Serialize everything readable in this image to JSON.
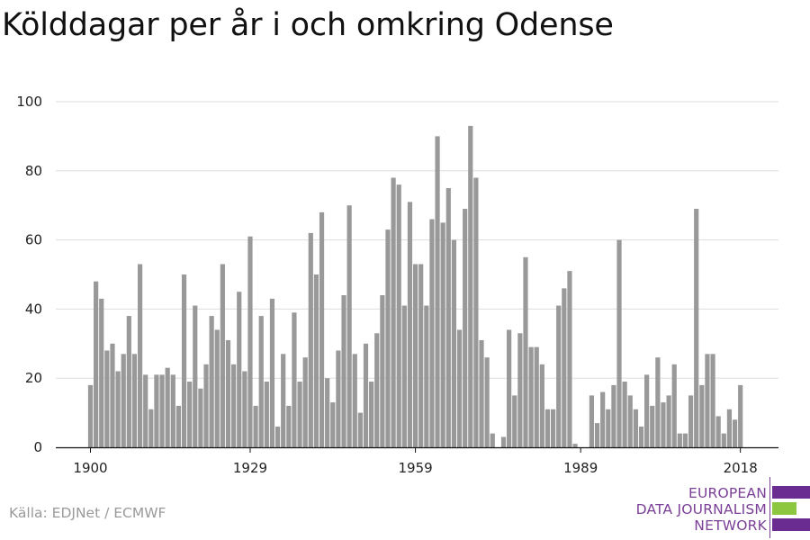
{
  "chart_data": {
    "type": "bar",
    "title": "Kölddagar per år i och omkring Odense",
    "xlabel": "",
    "ylabel": "",
    "x": [
      1900,
      1901,
      1902,
      1903,
      1904,
      1905,
      1906,
      1907,
      1908,
      1909,
      1910,
      1911,
      1912,
      1913,
      1914,
      1915,
      1916,
      1917,
      1918,
      1919,
      1920,
      1921,
      1922,
      1923,
      1924,
      1925,
      1926,
      1927,
      1928,
      1929,
      1930,
      1931,
      1932,
      1933,
      1934,
      1935,
      1936,
      1937,
      1938,
      1939,
      1940,
      1941,
      1942,
      1943,
      1944,
      1945,
      1946,
      1947,
      1948,
      1949,
      1950,
      1951,
      1952,
      1953,
      1954,
      1955,
      1956,
      1957,
      1958,
      1959,
      1960,
      1961,
      1962,
      1963,
      1964,
      1965,
      1966,
      1967,
      1968,
      1969,
      1970,
      1971,
      1972,
      1973,
      1974,
      1975,
      1976,
      1977,
      1978,
      1979,
      1980,
      1981,
      1982,
      1983,
      1984,
      1985,
      1986,
      1987,
      1988,
      1989,
      1990,
      1991,
      1992,
      1993,
      1994,
      1995,
      1996,
      1997,
      1998,
      1999,
      2000,
      2001,
      2002,
      2003,
      2004,
      2005,
      2006,
      2007,
      2008,
      2009,
      2010,
      2011,
      2012,
      2013,
      2014,
      2015,
      2016,
      2017,
      2018
    ],
    "values": [
      18,
      48,
      43,
      28,
      30,
      22,
      27,
      38,
      27,
      53,
      21,
      11,
      21,
      21,
      23,
      21,
      12,
      50,
      19,
      41,
      17,
      24,
      38,
      34,
      53,
      31,
      24,
      45,
      22,
      61,
      12,
      38,
      19,
      43,
      6,
      27,
      12,
      39,
      19,
      26,
      62,
      50,
      68,
      20,
      13,
      28,
      44,
      70,
      27,
      10,
      30,
      19,
      33,
      44,
      63,
      78,
      76,
      41,
      71,
      53,
      53,
      41,
      66,
      90,
      65,
      75,
      60,
      34,
      69,
      93,
      78,
      31,
      26,
      4,
      0,
      3,
      34,
      15,
      33,
      55,
      29,
      29,
      24,
      11,
      11,
      41,
      46,
      51,
      1,
      0,
      0,
      15,
      7,
      16,
      11,
      18,
      60,
      19,
      15,
      11,
      6,
      21,
      12,
      26,
      13,
      15,
      24,
      4,
      4,
      15,
      69,
      18,
      27,
      27,
      9,
      4,
      11,
      8,
      18
    ],
    "ylim": [
      0,
      100
    ],
    "yticks": [
      0,
      20,
      40,
      60,
      80,
      100
    ],
    "xticks": [
      1900,
      1929,
      1959,
      1989,
      2018
    ],
    "grid": true,
    "bar_color": "#999999",
    "grid_color": "#dddddd"
  },
  "source": "Källa: EDJNet / ECMWF",
  "logo": {
    "line1": "EUROPEAN",
    "line2": "DATA JOURNALISM",
    "line3": "NETWORK",
    "purple": "#6a2c91",
    "green": "#8dc63f"
  }
}
